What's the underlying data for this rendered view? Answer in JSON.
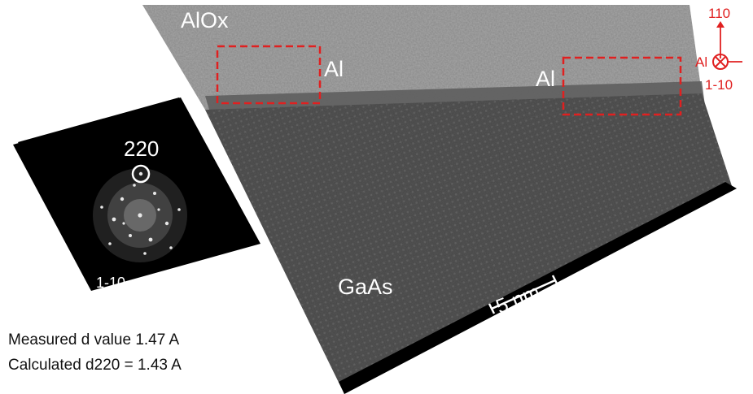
{
  "micrograph": {
    "layer_top": "AlOx",
    "layer_bottom": "GaAs",
    "roi_label_left": "Al",
    "roi_label_right": "Al",
    "scale_bar": "5 nm",
    "roi_color": "#e02020"
  },
  "orientation": {
    "axis_up": "110",
    "axis_into_page": "1-10",
    "material": "Al",
    "color": "#e02020"
  },
  "fft_inset": {
    "spot_label": "220",
    "zone_axis": "1-10"
  },
  "notes": {
    "measured": "Measured d value 1.47 A",
    "calculated": "Calculated d220 = 1.43 A"
  }
}
